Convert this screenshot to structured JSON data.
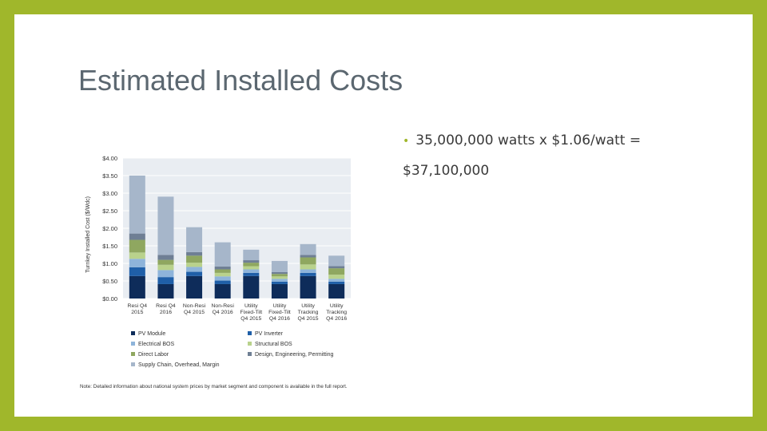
{
  "slide": {
    "title": "Estimated Installed Costs",
    "bullet_text": "35,000,000 watts x $1.06/watt =",
    "bullet_cont": "$37,100,000",
    "colors": {
      "frame": "#A0B72B",
      "background": "#FFFFFF",
      "title": "#5B6770"
    }
  },
  "chart_data": {
    "type": "bar",
    "stacked": true,
    "ylabel": "Turnkey Installed Cost ($/Wdc)",
    "ylim": [
      0,
      4
    ],
    "yticks": [
      "$0.00",
      "$0.50",
      "$1.00",
      "$1.50",
      "$2.00",
      "$2.50",
      "$3.00",
      "$3.50",
      "$4.00"
    ],
    "categories": [
      [
        "Resi Q4",
        "2015"
      ],
      [
        "Resi Q4",
        "2016"
      ],
      [
        "Non-Resi",
        "Q4 2015"
      ],
      [
        "Non-Resi",
        "Q4 2016"
      ],
      [
        "Utility",
        "Fixed-Tilt",
        "Q4 2015"
      ],
      [
        "Utility",
        "Fixed-Tilt",
        "Q4 2016"
      ],
      [
        "Utility",
        "Tracking",
        "Q4 2015"
      ],
      [
        "Utility",
        "Tracking",
        "Q4 2016"
      ]
    ],
    "series": [
      {
        "name": "PV Module",
        "color": "#0E2C5A",
        "values": [
          0.64,
          0.41,
          0.64,
          0.41,
          0.64,
          0.41,
          0.64,
          0.41
        ]
      },
      {
        "name": "PV Inverter",
        "color": "#1F5FA8",
        "values": [
          0.25,
          0.2,
          0.12,
          0.1,
          0.09,
          0.07,
          0.09,
          0.07
        ]
      },
      {
        "name": "Electrical BOS",
        "color": "#8EB4DA",
        "values": [
          0.24,
          0.2,
          0.14,
          0.12,
          0.1,
          0.08,
          0.1,
          0.08
        ]
      },
      {
        "name": "Structural BOS",
        "color": "#B9D28C",
        "values": [
          0.18,
          0.15,
          0.12,
          0.1,
          0.09,
          0.07,
          0.14,
          0.12
        ]
      },
      {
        "name": "Direct Labor",
        "color": "#8FA760",
        "values": [
          0.36,
          0.14,
          0.2,
          0.1,
          0.1,
          0.07,
          0.2,
          0.18
        ]
      },
      {
        "name": "Design, Engineering, Permitting",
        "color": "#6F7F94",
        "values": [
          0.18,
          0.14,
          0.1,
          0.08,
          0.07,
          0.05,
          0.07,
          0.06
        ]
      },
      {
        "name": "Supply Chain, Overhead, Margin",
        "color": "#A6B6CA",
        "values": [
          1.65,
          1.66,
          0.71,
          0.69,
          0.3,
          0.32,
          0.31,
          0.3
        ]
      }
    ],
    "legend_order": [
      "PV Module",
      "PV Inverter",
      "Electrical BOS",
      "Structural BOS",
      "Direct Labor",
      "Design, Engineering, Permitting",
      "Supply Chain, Overhead, Margin"
    ],
    "legend_placement": "bottom",
    "note": "Note: Detailed information about national system prices by market segment and component is available in the full report.",
    "grid": true
  }
}
